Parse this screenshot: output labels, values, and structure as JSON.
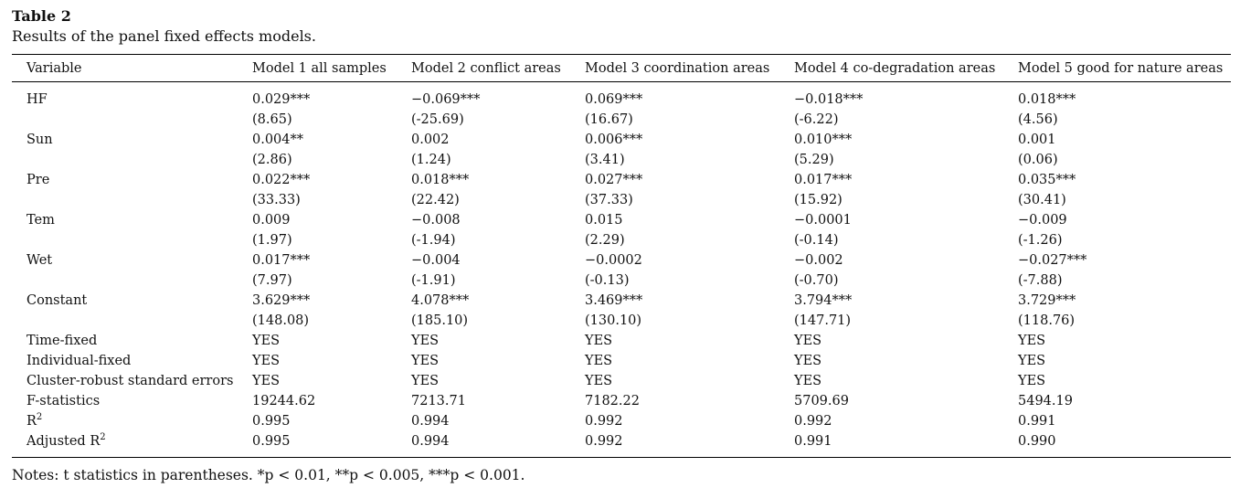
{
  "table": {
    "title": "Table 2",
    "caption": "Results of the panel fixed effects models.",
    "headers": [
      "Variable",
      "Model 1 all samples",
      "Model 2 conflict areas",
      "Model 3 coordination areas",
      "Model 4 co-degradation areas",
      "Model 5 good for nature areas"
    ],
    "rows": [
      [
        "HF",
        "0.029***",
        "−0.069***",
        "0.069***",
        "−0.018***",
        "0.018***"
      ],
      [
        "",
        "(8.65)",
        "(-25.69)",
        "(16.67)",
        "(-6.22)",
        "(4.56)"
      ],
      [
        "Sun",
        "0.004**",
        "0.002",
        "0.006***",
        "0.010***",
        "0.001"
      ],
      [
        "",
        "(2.86)",
        "(1.24)",
        "(3.41)",
        "(5.29)",
        "(0.06)"
      ],
      [
        "Pre",
        "0.022***",
        "0.018***",
        "0.027***",
        "0.017***",
        "0.035***"
      ],
      [
        "",
        "(33.33)",
        "(22.42)",
        "(37.33)",
        "(15.92)",
        "(30.41)"
      ],
      [
        "Tem",
        "0.009",
        "−0.008",
        "0.015",
        "−0.0001",
        "−0.009"
      ],
      [
        "",
        "(1.97)",
        "(-1.94)",
        "(2.29)",
        "(-0.14)",
        "(-1.26)"
      ],
      [
        "Wet",
        "0.017***",
        "−0.004",
        "−0.0002",
        "−0.002",
        "−0.027***"
      ],
      [
        "",
        "(7.97)",
        "(-1.91)",
        "(-0.13)",
        "(-0.70)",
        "(-7.88)"
      ],
      [
        "Constant",
        "3.629***",
        "4.078***",
        "3.469***",
        "3.794***",
        "3.729***"
      ],
      [
        "",
        "(148.08)",
        "(185.10)",
        "(130.10)",
        "(147.71)",
        "(118.76)"
      ],
      [
        "Time-fixed",
        "YES",
        "YES",
        "YES",
        "YES",
        "YES"
      ],
      [
        "Individual-fixed",
        "YES",
        "YES",
        "YES",
        "YES",
        "YES"
      ],
      [
        "Cluster-robust standard errors",
        "YES",
        "YES",
        "YES",
        "YES",
        "YES"
      ],
      [
        "F-statistics",
        "19244.62",
        "7213.71",
        "7182.22",
        "5709.69",
        "5494.19"
      ],
      [
        "R",
        "0.995",
        "0.994",
        "0.992",
        "0.992",
        "0.991"
      ],
      [
        "Adjusted R",
        "0.995",
        "0.994",
        "0.992",
        "0.991",
        "0.990"
      ]
    ],
    "r_squared_superscript": "2",
    "notes": "Notes: t statistics in parentheses. *p < 0.01, **p < 0.005, ***p < 0.001."
  }
}
